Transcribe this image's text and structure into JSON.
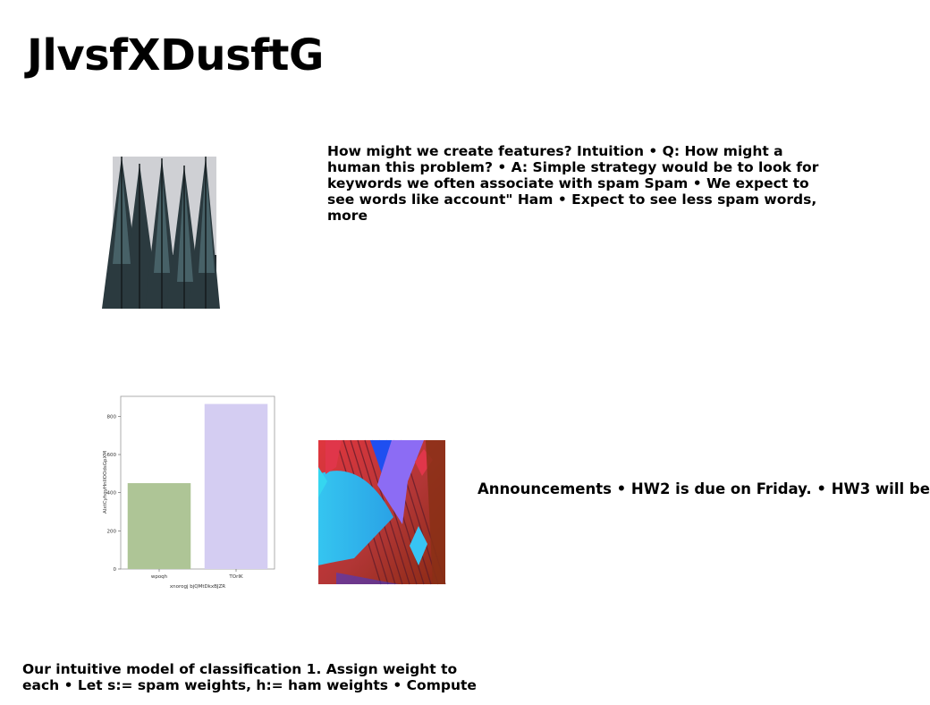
{
  "slide": {
    "title": "JlvsfXDusftG",
    "paragraph_1": "How might we create features? Intuition • Q: How might a human this problem? • A: Simple strategy would be to look for keywords we often associate with spam Spam • We expect to see words like account\" Ham • Expect to see less spam words, more",
    "paragraph_2": "Announcements • HW2 is due on Friday. • HW3 will be",
    "paragraph_3": "Our intuitive model of classification 1. Assign weight to each • Let s:= spam weights, h:= ham weights • Compute"
  },
  "chart_data": {
    "type": "bar",
    "categories": [
      "wpoqh",
      "TOrIK"
    ],
    "values": [
      450,
      865
    ],
    "colors": [
      "#aec596",
      "#d4cdf2"
    ],
    "xlabel": "xnorogj bjQMtDkxBJZR",
    "ylabel": "AlxtCyhgyHnIlOOdsGpXM",
    "yticks": [
      0,
      200,
      400,
      600,
      800
    ],
    "ylim": [
      0,
      905
    ],
    "grid": false
  }
}
